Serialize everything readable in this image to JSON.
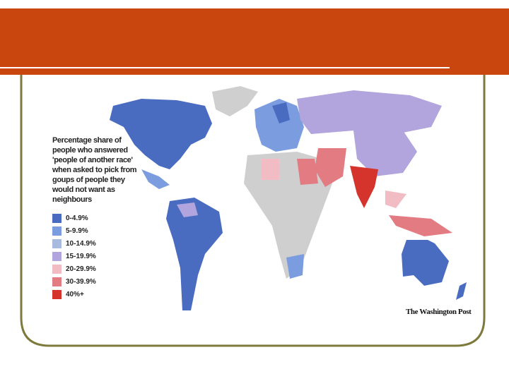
{
  "legend": {
    "title": "Percentage share of people who answered 'people of another race' when asked to pick from goups of people they would not want as neighbours",
    "items": [
      {
        "label": "0-4.9%",
        "color": "#4a6cc0"
      },
      {
        "label": "5-9.9%",
        "color": "#7b9de0"
      },
      {
        "label": "10-14.9%",
        "color": "#a9badf"
      },
      {
        "label": "15-19.9%",
        "color": "#b2a4dc"
      },
      {
        "label": "20-29.9%",
        "color": "#f1bcc4"
      },
      {
        "label": "30-39.9%",
        "color": "#e27b82"
      },
      {
        "label": "40%+",
        "color": "#d4342c"
      }
    ]
  },
  "credit": "The Washington Post"
}
